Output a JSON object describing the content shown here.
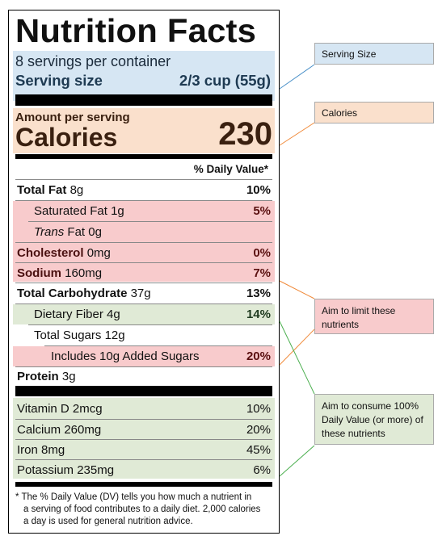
{
  "label": {
    "title": "Nutrition Facts",
    "servings_per_container": "8 servings per container",
    "serving_size_label": "Serving size",
    "serving_size_value": "2/3 cup (55g)",
    "amount_per_serving": "Amount per serving",
    "calories_label": "Calories",
    "calories_value": "230",
    "daily_value_header": "% Daily Value*",
    "nutrients": [
      {
        "name": "Total Fat",
        "amount": "8g",
        "dv": "10%"
      },
      {
        "name": "Saturated Fat",
        "amount": "1g",
        "dv": "5%"
      },
      {
        "name_italic": "Trans",
        "name": "Fat",
        "amount": "0g",
        "dv": ""
      },
      {
        "name": "Cholesterol",
        "amount": "0mg",
        "dv": "0%"
      },
      {
        "name": "Sodium",
        "amount": "160mg",
        "dv": "7%"
      },
      {
        "name": "Total Carbohydrate",
        "amount": "37g",
        "dv": "13%"
      },
      {
        "name": "Dietary Fiber",
        "amount": "4g",
        "dv": "14%"
      },
      {
        "name": "Total Sugars",
        "amount": "12g",
        "dv": ""
      },
      {
        "name": "Includes 10g Added Sugars",
        "amount": "",
        "dv": "20%"
      },
      {
        "name": "Protein",
        "amount": "3g",
        "dv": ""
      }
    ],
    "vitamins": [
      {
        "name": "Vitamin D 2mcg",
        "dv": "10%"
      },
      {
        "name": "Calcium 260mg",
        "dv": "20%"
      },
      {
        "name": "Iron 8mg",
        "dv": "45%"
      },
      {
        "name": "Potassium 235mg",
        "dv": "6%"
      }
    ],
    "footnote_line1": "* The % Daily Value (DV) tells you how much a nutrient in",
    "footnote_line2": "a serving of food contributes to a daily diet. 2,000 calories",
    "footnote_line3": "a day is used for general nutrition advice."
  },
  "callouts": {
    "serving_size": "Serving Size",
    "calories": "Calories",
    "limit": "Aim to limit these nutrients",
    "consume": "Aim to consume 100% Daily Value (or more) of these nutrients"
  },
  "colors": {
    "serving_highlight": "#d6e6f3",
    "calories_highlight": "#fae0cc",
    "limit_highlight": "#f8cbcc",
    "consume_highlight": "#e0ead6",
    "serving_line": "#4a90c8",
    "calories_line": "#f08a3a",
    "limit_line": "#f08a3a",
    "consume_line": "#4caf50"
  }
}
